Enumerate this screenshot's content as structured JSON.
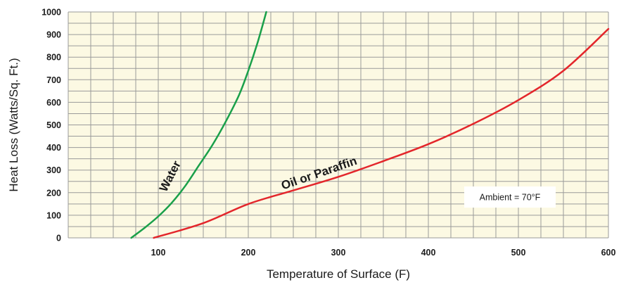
{
  "chart_data": {
    "type": "line",
    "title": "",
    "xlabel": "Temperature of Surface (F)",
    "ylabel": "Heat Loss (Watts/Sq. Ft.)",
    "xlim": [
      0,
      600
    ],
    "ylim": [
      0,
      1000
    ],
    "x_ticks": [
      100,
      200,
      300,
      400,
      500,
      600
    ],
    "y_ticks": [
      0,
      100,
      200,
      300,
      400,
      500,
      600,
      700,
      800,
      900,
      1000
    ],
    "grid": true,
    "series": [
      {
        "name": "Water",
        "color": "#1aa04a",
        "x": [
          70,
          85,
          100,
          115,
          130,
          145,
          160,
          175,
          190,
          200,
          210,
          220
        ],
        "y": [
          0,
          45,
          95,
          155,
          230,
          320,
          410,
          515,
          635,
          740,
          860,
          1000
        ]
      },
      {
        "name": "Oil or Paraffin",
        "color": "#e3262b",
        "x": [
          95,
          150,
          200,
          250,
          300,
          350,
          400,
          450,
          500,
          550,
          600
        ],
        "y": [
          0,
          65,
          150,
          210,
          270,
          340,
          415,
          505,
          610,
          740,
          925
        ]
      }
    ],
    "annotation": "Ambient = 70°F",
    "plot_background": "#fcf9e3",
    "grid_color": "#9a9a9a"
  }
}
